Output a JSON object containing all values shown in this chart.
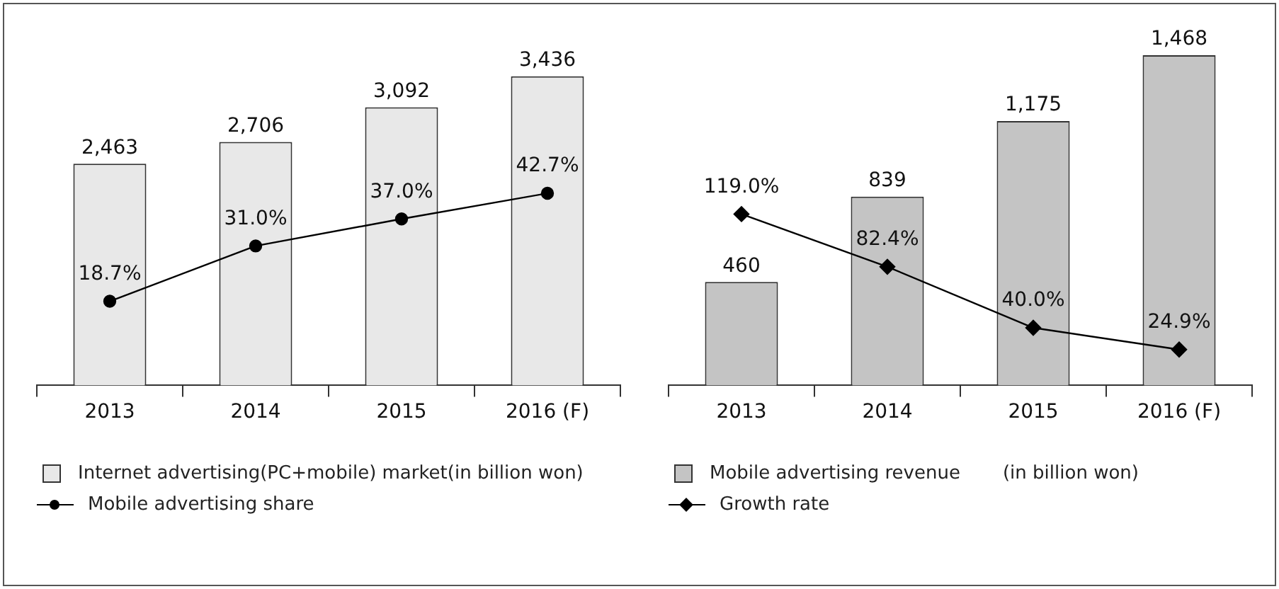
{
  "chart_data": [
    {
      "type": "bar",
      "categories": [
        "2013",
        "2014",
        "2015",
        "2016 (F)"
      ],
      "tick_labels": "x",
      "grid": false,
      "legend": "bottom",
      "series": [
        {
          "name": "Internet advertising(PC+mobile) market(in billion won)",
          "color": "#e8e8e8",
          "values": [
            2463,
            2706,
            3092,
            3436
          ],
          "value_labels": [
            "2,463",
            "2,706",
            "3,092",
            "3,436"
          ]
        },
        {
          "name": "Mobile advertising share",
          "type": "line",
          "axis": "y2",
          "marker": "circle",
          "color": "#000000",
          "values": [
            18.7,
            31.0,
            37.0,
            42.7
          ],
          "value_labels": [
            "18.7%",
            "31.0%",
            "37.0%",
            "42.7%"
          ]
        }
      ]
    },
    {
      "type": "bar",
      "categories": [
        "2013",
        "2014",
        "2015",
        "2016 (F)"
      ],
      "tick_labels": "x",
      "grid": false,
      "legend": "bottom",
      "annotations": [
        "(in billion won)"
      ],
      "series": [
        {
          "name": "Mobile advertising revenue",
          "color": "#c4c4c4",
          "values": [
            460,
            839,
            1175,
            1468
          ],
          "value_labels": [
            "460",
            "839",
            "1,175",
            "1,468"
          ]
        },
        {
          "name": "Growth rate",
          "type": "line",
          "axis": "y2",
          "marker": "diamond",
          "color": "#000000",
          "values": [
            119.0,
            82.4,
            40.0,
            24.9
          ],
          "value_labels": [
            "119.0%",
            "82.4%",
            "40.0%",
            "24.9%"
          ]
        }
      ]
    }
  ]
}
